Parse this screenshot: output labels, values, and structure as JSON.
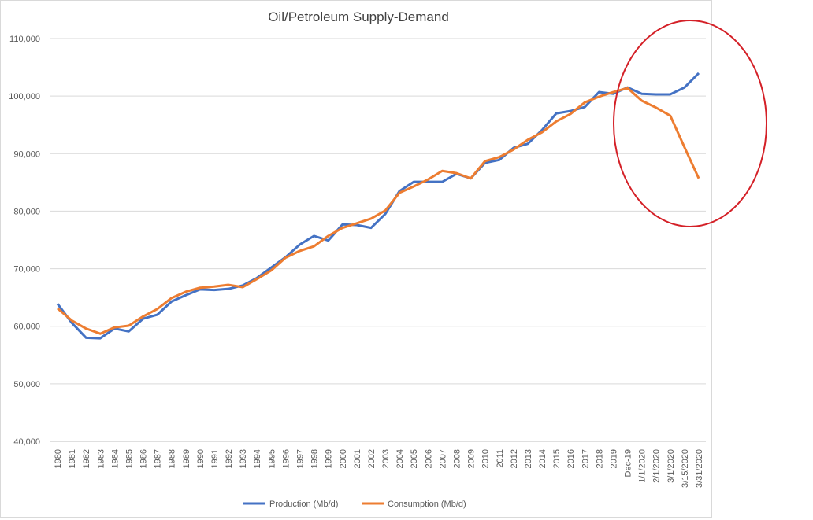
{
  "chart_data": {
    "type": "line",
    "title": "Oil/Petroleum Supply-Demand",
    "categories": [
      "1980",
      "1981",
      "1982",
      "1983",
      "1984",
      "1985",
      "1986",
      "1987",
      "1988",
      "1989",
      "1990",
      "1991",
      "1992",
      "1993",
      "1994",
      "1995",
      "1996",
      "1997",
      "1998",
      "1999",
      "2000",
      "2001",
      "2002",
      "2003",
      "2004",
      "2005",
      "2006",
      "2007",
      "2008",
      "2009",
      "2010",
      "2011",
      "2012",
      "2013",
      "2014",
      "2015",
      "2016",
      "2017",
      "2018",
      "2019",
      "Dec-19",
      "1/1/2020",
      "2/1/2020",
      "3/1/2020",
      "3/15/2020",
      "3/31/2020"
    ],
    "series": [
      {
        "name": "Production (Mb/d)",
        "color": "#4472c4",
        "values": [
          63900,
          60600,
          58000,
          57900,
          59600,
          59100,
          61300,
          62000,
          64300,
          65400,
          66400,
          66300,
          66500,
          67100,
          68400,
          70200,
          72000,
          74200,
          75700,
          74900,
          77700,
          77600,
          77100,
          79500,
          83500,
          85100,
          85100,
          85100,
          86500,
          85700,
          88400,
          88900,
          91000,
          91700,
          94100,
          97000,
          97400,
          98100,
          100700,
          100400,
          101500,
          100400,
          100300,
          100300,
          101500,
          104000
        ]
      },
      {
        "name": "Consumption (Mb/d)",
        "color": "#ed7d31",
        "values": [
          63100,
          61000,
          59600,
          58700,
          59800,
          60100,
          61700,
          63000,
          64900,
          66000,
          66700,
          66900,
          67200,
          66800,
          68200,
          69700,
          71900,
          73100,
          73900,
          75700,
          77100,
          77900,
          78700,
          80100,
          83200,
          84300,
          85500,
          87000,
          86600,
          85700,
          88700,
          89400,
          90700,
          92400,
          93700,
          95600,
          96900,
          98900,
          99900,
          100700,
          101400,
          99200,
          98000,
          96600,
          91100,
          85700
        ]
      }
    ],
    "ylim": [
      40000,
      110000
    ],
    "yticks": [
      {
        "value": 40000,
        "label": "40,000"
      },
      {
        "value": 50000,
        "label": "50,000"
      },
      {
        "value": 60000,
        "label": "60,000"
      },
      {
        "value": 70000,
        "label": "70,000"
      },
      {
        "value": 80000,
        "label": "80,000"
      },
      {
        "value": 90000,
        "label": "90,000"
      },
      {
        "value": 100000,
        "label": "100,000"
      },
      {
        "value": 110000,
        "label": "110,000"
      }
    ],
    "grid": true,
    "legend": "bottom"
  }
}
